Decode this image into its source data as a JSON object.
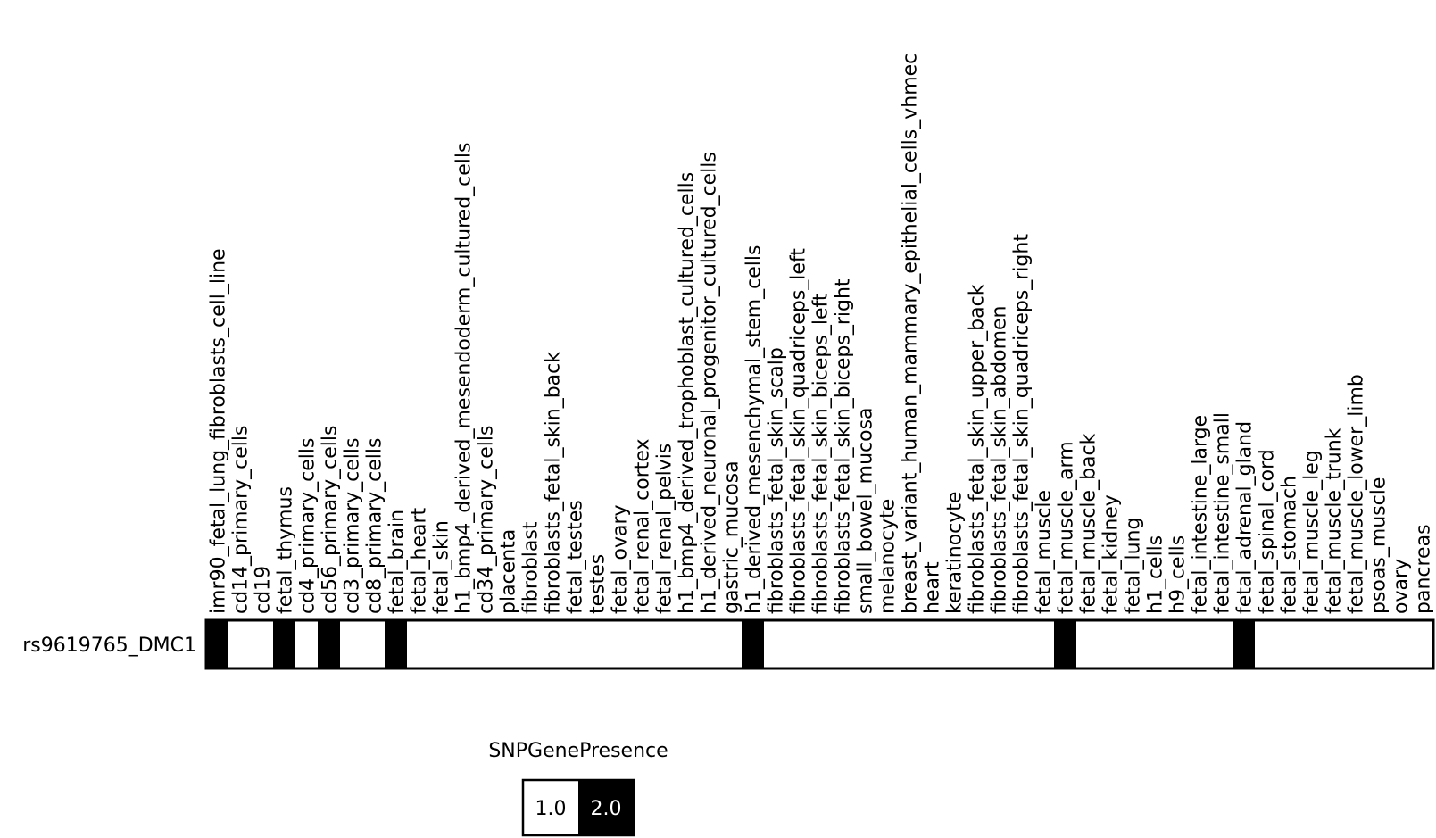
{
  "chart_data": {
    "type": "heatmap",
    "rows": [
      "rs9619765_DMC1"
    ],
    "columns": [
      "imr90_fetal_lung_fibroblasts_cell_line",
      "cd14_primary_cells",
      "cd19",
      "fetal_thymus",
      "cd4_primary_cells",
      "cd56_primary_cells",
      "cd3_primary_cells",
      "cd8_primary_cells",
      "fetal_brain",
      "fetal_heart",
      "fetal_skin",
      "h1_bmp4_derived_mesendoderm_cultured_cells",
      "cd34_primary_cells",
      "placenta",
      "fibroblast",
      "fibroblasts_fetal_skin_back",
      "fetal_testes",
      "testes",
      "fetal_ovary",
      "fetal_renal_cortex",
      "fetal_renal_pelvis",
      "h1_bmp4_derived_trophoblast_cultured_cells",
      "h1_derived_neuronal_progenitor_cultured_cells",
      "gastric_mucosa",
      "h1_derived_mesenchymal_stem_cells",
      "fibroblasts_fetal_skin_scalp",
      "fibroblasts_fetal_skin_quadriceps_left",
      "fibroblasts_fetal_skin_biceps_left",
      "fibroblasts_fetal_skin_biceps_right",
      "small_bowel_mucosa",
      "melanocyte",
      "breast_variant_human_mammary_epithelial_cells_vhmec",
      "heart",
      "keratinocyte",
      "fibroblasts_fetal_skin_upper_back",
      "fibroblasts_fetal_skin_abdomen",
      "fibroblasts_fetal_skin_quadriceps_right",
      "fetal_muscle",
      "fetal_muscle_arm",
      "fetal_muscle_back",
      "fetal_kidney",
      "fetal_lung",
      "h1_cells",
      "h9_cells",
      "fetal_intestine_large",
      "fetal_intestine_small",
      "fetal_adrenal_gland",
      "fetal_spinal_cord",
      "fetal_stomach",
      "fetal_muscle_leg",
      "fetal_muscle_trunk",
      "fetal_muscle_lower_limb",
      "psoas_muscle",
      "ovary",
      "pancreas"
    ],
    "values": [
      [
        2,
        1,
        1,
        2,
        1,
        2,
        1,
        1,
        2,
        1,
        1,
        1,
        1,
        1,
        1,
        1,
        1,
        1,
        1,
        1,
        1,
        1,
        1,
        1,
        2,
        1,
        1,
        1,
        1,
        1,
        1,
        1,
        1,
        1,
        1,
        1,
        1,
        1,
        2,
        1,
        1,
        1,
        1,
        1,
        1,
        1,
        2,
        1,
        1,
        1,
        1,
        1,
        1,
        1,
        1
      ]
    ],
    "legend": {
      "title": "SNPGenePresence",
      "items": [
        {
          "label": "1.0",
          "value": 1,
          "color": "#ffffff"
        },
        {
          "label": "2.0",
          "value": 2,
          "color": "#000000"
        }
      ]
    },
    "colors": {
      "1": "#ffffff",
      "2": "#000000"
    }
  }
}
